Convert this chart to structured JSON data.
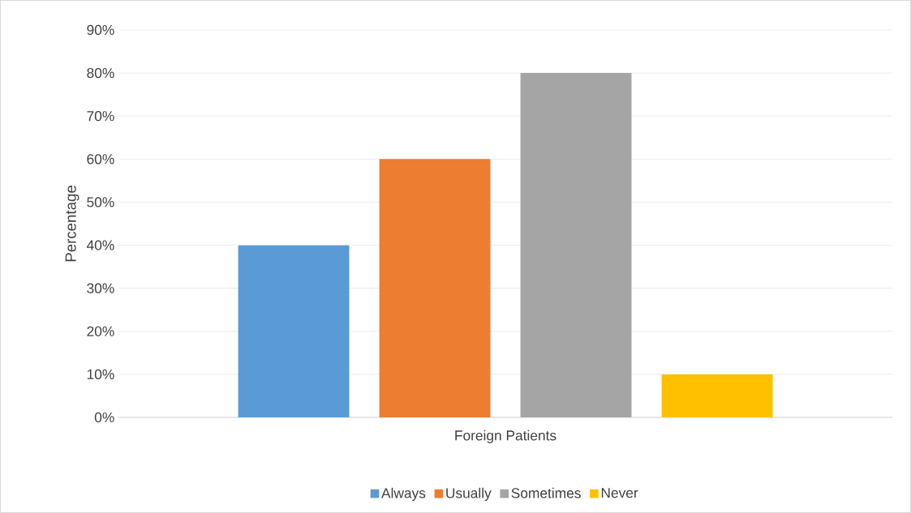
{
  "chart_data": {
    "type": "bar",
    "xlabel": null,
    "ylabel": "Percentage",
    "categories": [
      "Foreign Patients"
    ],
    "series": [
      {
        "name": "Always",
        "color": "#5b9bd5",
        "values": [
          40
        ]
      },
      {
        "name": "Usually",
        "color": "#ed7d31",
        "values": [
          60
        ]
      },
      {
        "name": "Sometimes",
        "color": "#a5a5a5",
        "values": [
          80
        ]
      },
      {
        "name": "Never",
        "color": "#ffc000",
        "values": [
          10
        ]
      }
    ],
    "ylim": [
      0,
      90
    ],
    "yticks": [
      {
        "value": 0,
        "label": "0%"
      },
      {
        "value": 10,
        "label": "10%"
      },
      {
        "value": 20,
        "label": "20%"
      },
      {
        "value": 30,
        "label": "30%"
      },
      {
        "value": 40,
        "label": "40%"
      },
      {
        "value": 50,
        "label": "50%"
      },
      {
        "value": 60,
        "label": "60%"
      },
      {
        "value": 70,
        "label": "70%"
      },
      {
        "value": 80,
        "label": "80%"
      },
      {
        "value": 90,
        "label": "90%"
      }
    ],
    "grid": "y",
    "legend": "bottom"
  }
}
